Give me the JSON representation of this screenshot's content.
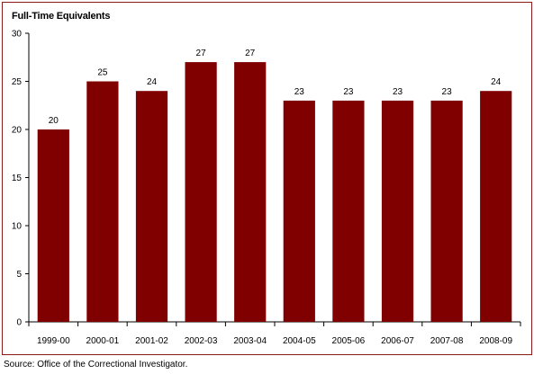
{
  "chart_data": {
    "type": "bar",
    "title": "Full-Time Equivalents",
    "xlabel": "",
    "ylabel": "",
    "categories": [
      "1999-00",
      "2000-01",
      "2001-02",
      "2002-03",
      "2003-04",
      "2004-05",
      "2005-06",
      "2006-07",
      "2007-08",
      "2008-09"
    ],
    "values": [
      20,
      25,
      24,
      27,
      27,
      23,
      23,
      23,
      23,
      24
    ],
    "ylim": [
      0,
      30
    ],
    "yticks": [
      0,
      5,
      10,
      15,
      20,
      25,
      30
    ],
    "grid": false,
    "legend": "none",
    "bar_color": "#800000",
    "frame_color": "#8b1a1a"
  },
  "source": "Source:  Office of the Correctional Investigator."
}
